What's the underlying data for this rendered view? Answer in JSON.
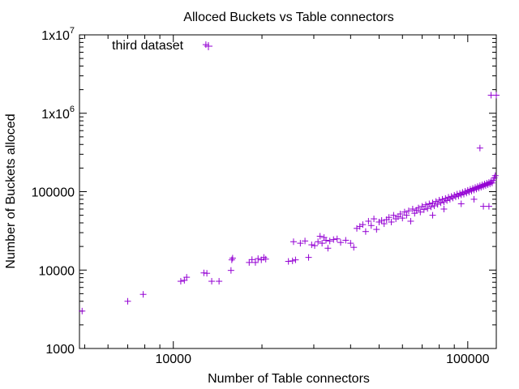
{
  "chart_data": {
    "type": "scatter",
    "title": "Alloced Buckets vs Table connectors",
    "xlabel": "Number of Table connectors",
    "ylabel": "Number of Buckets alloced",
    "xscale": "log",
    "yscale": "log",
    "xlim": [
      4800,
      125000
    ],
    "ylim": [
      1000,
      10000000
    ],
    "x_ticks": [
      {
        "value": 10000,
        "label": "10000"
      },
      {
        "value": 100000,
        "label": "100000"
      }
    ],
    "y_ticks": [
      {
        "value": 1000,
        "label": "1000"
      },
      {
        "value": 10000,
        "label": "10000"
      },
      {
        "value": 100000,
        "label": "100000"
      },
      {
        "value": 1000000,
        "label": "1x10",
        "exp": "6"
      },
      {
        "value": 10000000,
        "label": "1x10",
        "exp": "7"
      }
    ],
    "grid": false,
    "legend_position": "top-left",
    "series": [
      {
        "name": "third dataset",
        "color": "#9400d3",
        "marker": "plus",
        "points": [
          [
            4900,
            3000
          ],
          [
            7000,
            4000
          ],
          [
            7900,
            4900
          ],
          [
            10600,
            7200
          ],
          [
            10900,
            7400
          ],
          [
            11100,
            8100
          ],
          [
            12700,
            9200
          ],
          [
            13000,
            9100
          ],
          [
            13500,
            7200
          ],
          [
            14300,
            7200
          ],
          [
            12900,
            7500000
          ],
          [
            15700,
            9900
          ],
          [
            15800,
            13500
          ],
          [
            15900,
            14200
          ],
          [
            18100,
            12500
          ],
          [
            18500,
            13600
          ],
          [
            19000,
            12500
          ],
          [
            19400,
            14000
          ],
          [
            19900,
            13500
          ],
          [
            20300,
            14500
          ],
          [
            20600,
            13800
          ],
          [
            24600,
            12900
          ],
          [
            25400,
            13100
          ],
          [
            25600,
            23000
          ],
          [
            26000,
            13500
          ],
          [
            27000,
            22000
          ],
          [
            28000,
            23500
          ],
          [
            28800,
            14500
          ],
          [
            29500,
            21000
          ],
          [
            30200,
            20500
          ],
          [
            31000,
            23000
          ],
          [
            31500,
            27000
          ],
          [
            32000,
            22000
          ],
          [
            32500,
            26000
          ],
          [
            33000,
            24000
          ],
          [
            33500,
            19000
          ],
          [
            34000,
            23500
          ],
          [
            35000,
            24500
          ],
          [
            36000,
            25000
          ],
          [
            37000,
            22500
          ],
          [
            38500,
            24000
          ],
          [
            40000,
            22000
          ],
          [
            41000,
            19500
          ],
          [
            42000,
            34000
          ],
          [
            43000,
            36000
          ],
          [
            44000,
            38000
          ],
          [
            45000,
            31000
          ],
          [
            46000,
            42000
          ],
          [
            47000,
            37000
          ],
          [
            48000,
            45000
          ],
          [
            49000,
            33000
          ],
          [
            50000,
            41000
          ],
          [
            51000,
            43000
          ],
          [
            52000,
            39000
          ],
          [
            53000,
            44000
          ],
          [
            54000,
            47000
          ],
          [
            55000,
            41000
          ],
          [
            56000,
            50000
          ],
          [
            57000,
            45000
          ],
          [
            58000,
            48000
          ],
          [
            59000,
            52000
          ],
          [
            60000,
            46000
          ],
          [
            61000,
            55000
          ],
          [
            62000,
            50000
          ],
          [
            63000,
            57000
          ],
          [
            64000,
            42000
          ],
          [
            65000,
            60000
          ],
          [
            66000,
            53000
          ],
          [
            67000,
            58000
          ],
          [
            68000,
            62000
          ],
          [
            69000,
            55000
          ],
          [
            70000,
            65000
          ],
          [
            71000,
            59000
          ],
          [
            72000,
            68000
          ],
          [
            73000,
            61000
          ],
          [
            74000,
            70000
          ],
          [
            75000,
            64000
          ],
          [
            76000,
            72000
          ],
          [
            77000,
            66000
          ],
          [
            78000,
            75000
          ],
          [
            79000,
            69000
          ],
          [
            80000,
            78000
          ],
          [
            81000,
            72000
          ],
          [
            82000,
            80000
          ],
          [
            83000,
            74000
          ],
          [
            84000,
            82000
          ],
          [
            85000,
            77000
          ],
          [
            86000,
            85000
          ],
          [
            87000,
            80000
          ],
          [
            88000,
            87000
          ],
          [
            89000,
            83000
          ],
          [
            90000,
            90000
          ],
          [
            91000,
            86000
          ],
          [
            92000,
            93000
          ],
          [
            93000,
            88000
          ],
          [
            94000,
            95000
          ],
          [
            95000,
            91000
          ],
          [
            96000,
            98000
          ],
          [
            97000,
            93000
          ],
          [
            98000,
            101000
          ],
          [
            99000,
            96000
          ],
          [
            100000,
            104000
          ],
          [
            101000,
            99000
          ],
          [
            102000,
            107000
          ],
          [
            103000,
            102000
          ],
          [
            104000,
            110000
          ],
          [
            105000,
            105000
          ],
          [
            106000,
            113000
          ],
          [
            107000,
            108000
          ],
          [
            108000,
            116000
          ],
          [
            109000,
            111000
          ],
          [
            110000,
            119000
          ],
          [
            111000,
            114000
          ],
          [
            112000,
            122000
          ],
          [
            113000,
            117000
          ],
          [
            114000,
            125000
          ],
          [
            115000,
            120000
          ],
          [
            116000,
            128000
          ],
          [
            117000,
            123000
          ],
          [
            118000,
            131000
          ],
          [
            119000,
            126000
          ],
          [
            120000,
            134000
          ],
          [
            121000,
            129000
          ],
          [
            122000,
            140000
          ],
          [
            123000,
            150000
          ],
          [
            124000,
            160000
          ],
          [
            76000,
            50000
          ],
          [
            83000,
            60000
          ],
          [
            95000,
            70000
          ],
          [
            105000,
            80000
          ],
          [
            110000,
            360000
          ],
          [
            113000,
            65000
          ],
          [
            118000,
            65000
          ],
          [
            120000,
            1700000
          ],
          [
            125000,
            1700000
          ]
        ]
      }
    ]
  }
}
